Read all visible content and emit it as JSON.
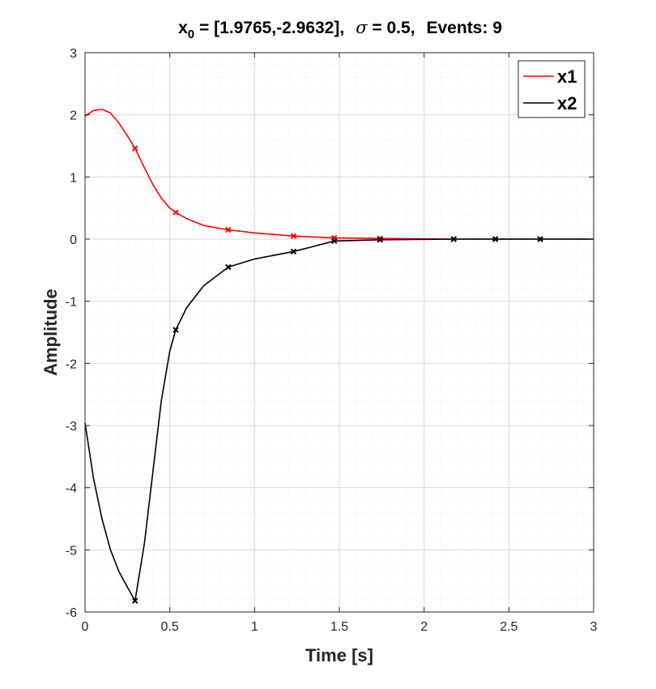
{
  "chart_data": {
    "type": "line",
    "title": {
      "prefix": "x",
      "subscript": "0",
      "vector": " = [1.9765,-2.9632],",
      "sigma_symbol": "σ",
      "sigma_value": " = 0.5,",
      "events": "Events: 9"
    },
    "xlabel": "Time [s]",
    "ylabel": "Amplitude",
    "xlim": [
      0,
      3
    ],
    "ylim": [
      -6,
      3
    ],
    "xticks": [
      0,
      0.5,
      1,
      1.5,
      2,
      2.5,
      3
    ],
    "xtick_labels": [
      "0",
      "0.5",
      "1",
      "1.5",
      "2",
      "2.5",
      "3"
    ],
    "yticks": [
      -6,
      -5,
      -4,
      -3,
      -2,
      -1,
      0,
      1,
      2,
      3
    ],
    "ytick_labels": [
      "-6",
      "-5",
      "-4",
      "-3",
      "-2",
      "-1",
      "0",
      "1",
      "2",
      "3"
    ],
    "grid": true,
    "minor_grid": true,
    "legend_position": "top-right",
    "event_times": [
      0.295,
      0.535,
      0.845,
      1.23,
      1.47,
      1.74,
      2.175,
      2.42,
      2.685
    ],
    "series": [
      {
        "name": "x1",
        "color": "#ff0000",
        "x": [
          0,
          0.05,
          0.1,
          0.15,
          0.2,
          0.25,
          0.295,
          0.35,
          0.4,
          0.45,
          0.5,
          0.535,
          0.6,
          0.7,
          0.845,
          1.0,
          1.23,
          1.47,
          1.74,
          2.175,
          2.42,
          2.685,
          3.0
        ],
        "y": [
          1.98,
          2.07,
          2.09,
          2.03,
          1.87,
          1.66,
          1.46,
          1.15,
          0.88,
          0.66,
          0.5,
          0.43,
          0.33,
          0.22,
          0.15,
          0.1,
          0.05,
          0.02,
          0.01,
          0.0,
          0.0,
          0.0,
          0.0
        ],
        "markers": [
          1.46,
          0.43,
          0.15,
          0.05,
          0.02,
          0.01,
          0.0,
          0.0,
          0.0
        ]
      },
      {
        "name": "x2",
        "color": "#000000",
        "x": [
          0,
          0.05,
          0.1,
          0.15,
          0.2,
          0.25,
          0.295,
          0.35,
          0.4,
          0.45,
          0.5,
          0.535,
          0.6,
          0.7,
          0.845,
          1.0,
          1.23,
          1.47,
          1.74,
          2.175,
          2.42,
          2.685,
          3.0
        ],
        "y": [
          -2.96,
          -3.85,
          -4.5,
          -5.0,
          -5.35,
          -5.6,
          -5.82,
          -4.9,
          -3.75,
          -2.6,
          -1.8,
          -1.46,
          -1.1,
          -0.75,
          -0.45,
          -0.32,
          -0.2,
          -0.03,
          -0.01,
          0.0,
          0.0,
          0.0,
          0.0
        ],
        "markers": [
          -5.82,
          -1.46,
          -0.45,
          -0.2,
          -0.03,
          -0.01,
          0.0,
          0.0,
          0.0
        ]
      }
    ]
  }
}
